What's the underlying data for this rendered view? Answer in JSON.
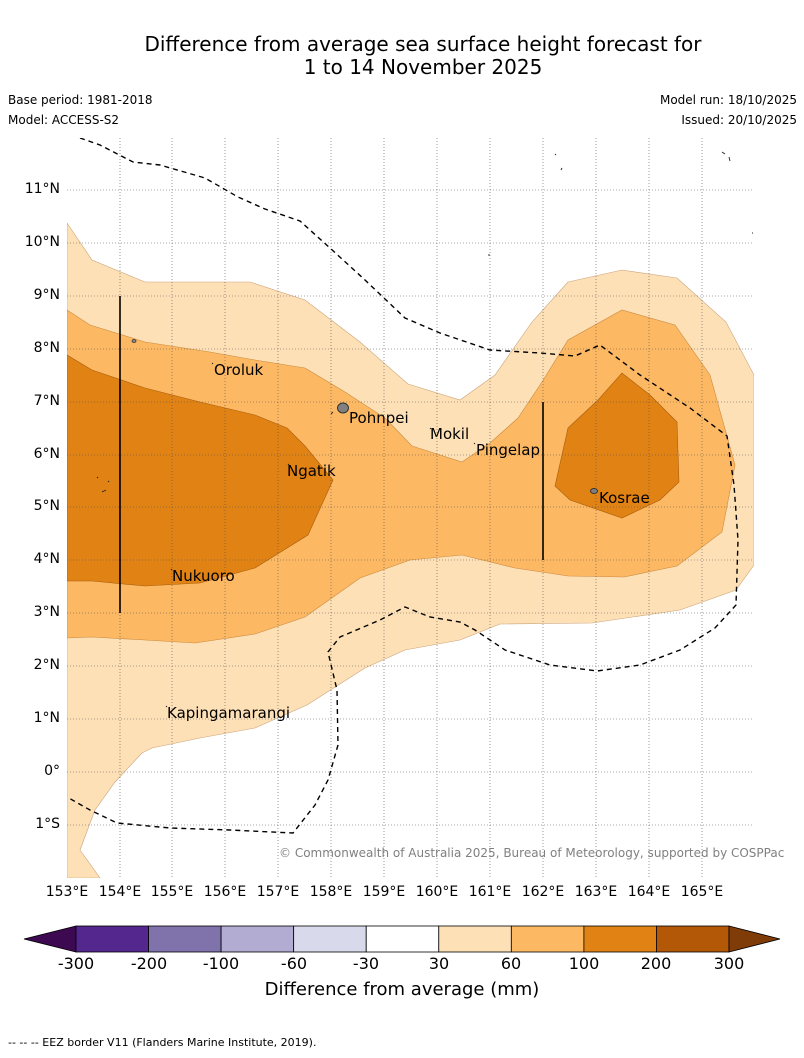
{
  "title": {
    "line1": "Difference from average sea surface height forecast for",
    "line2": "1 to 14 November 2025"
  },
  "meta": {
    "base_period": "Base period: 1981-2018",
    "model": "Model: ACCESS-S2",
    "model_run": "Model run: 18/10/2025",
    "issued": "Issued: 20/10/2025"
  },
  "axes": {
    "lat_labels": [
      "11°N",
      "10°N",
      "9°N",
      "8°N",
      "7°N",
      "6°N",
      "5°N",
      "4°N",
      "3°N",
      "2°N",
      "1°N",
      "0°",
      "1°S"
    ],
    "lon_labels": [
      "153°E",
      "154°E",
      "155°E",
      "156°E",
      "157°E",
      "158°E",
      "159°E",
      "160°E",
      "161°E",
      "162°E",
      "163°E",
      "164°E",
      "165°E"
    ],
    "lat_range": [
      -2,
      12
    ],
    "lon_range": [
      153,
      166
    ]
  },
  "places": [
    {
      "name": "Oroluk"
    },
    {
      "name": "Pohnpei"
    },
    {
      "name": "Mokil"
    },
    {
      "name": "Pingelap"
    },
    {
      "name": "Ngatik"
    },
    {
      "name": "Kosrae"
    },
    {
      "name": "Nukuoro"
    },
    {
      "name": "Kapingamarangi"
    }
  ],
  "copyright": "© Commonwealth of Australia 2025, Bureau of Meteorology, supported by COSPPac",
  "colorbar": {
    "title": "Difference from average (mm)",
    "tick_labels": [
      "-300",
      "-200",
      "-100",
      "-60",
      "-30",
      "30",
      "60",
      "100",
      "200",
      "300"
    ],
    "colors": [
      "#3d0a51",
      "#54278f",
      "#8073ac",
      "#b2abd2",
      "#d8daeb",
      "#ffffff",
      "#fee0b6",
      "#fdb863",
      "#e08214",
      "#b35806",
      "#7f3b08"
    ]
  },
  "footnote": "-- -- -- EEZ border V11 (Flanders Marine Institute, 2019).",
  "legend_colors": {
    "level_30_60": "#fee0b6",
    "level_60_100": "#fdb863",
    "level_100_200": "#e08214"
  }
}
